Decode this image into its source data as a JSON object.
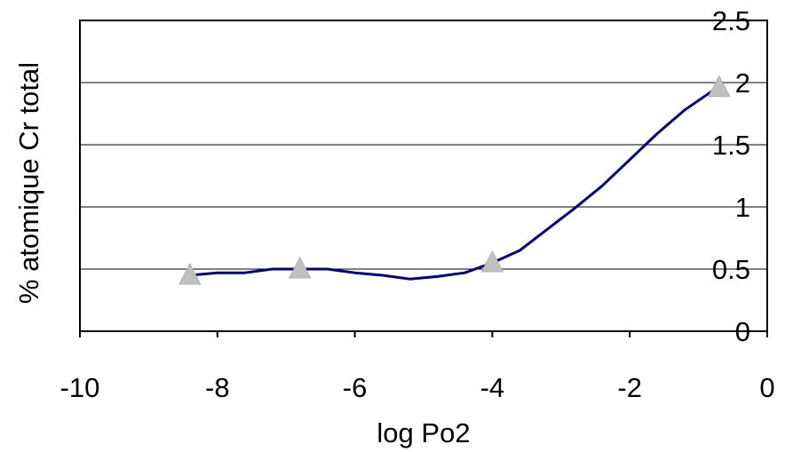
{
  "chart_data": {
    "type": "line",
    "title": "",
    "xlabel": "log Po2",
    "ylabel": "% atomique Cr total",
    "xlim": [
      -10,
      0
    ],
    "ylim": [
      0,
      2.5
    ],
    "x_ticks": [
      -10,
      -8,
      -6,
      -4,
      -2,
      0
    ],
    "x_tick_labels": [
      "-10",
      "-8",
      "-6",
      "-4",
      "-2",
      "0"
    ],
    "y_ticks": [
      0,
      0.5,
      1,
      1.5,
      2,
      2.5
    ],
    "y_tick_labels": [
      "0",
      "0.5",
      "1",
      "1.5",
      "2",
      "2.5"
    ],
    "grid": "horizontal",
    "legend": "none",
    "series": [
      {
        "kind": "line",
        "color": "#000080",
        "x": [
          -8.4,
          -8.0,
          -7.6,
          -7.2,
          -6.8,
          -6.4,
          -6.0,
          -5.6,
          -5.2,
          -4.8,
          -4.4,
          -4.0,
          -3.6,
          -3.2,
          -2.8,
          -2.4,
          -2.0,
          -1.6,
          -1.2,
          -0.7
        ],
        "y": [
          0.45,
          0.47,
          0.47,
          0.5,
          0.5,
          0.5,
          0.47,
          0.45,
          0.42,
          0.44,
          0.47,
          0.55,
          0.65,
          0.82,
          0.99,
          1.17,
          1.38,
          1.59,
          1.78,
          1.97
        ]
      },
      {
        "kind": "marker",
        "marker": "triangle",
        "color": "#c0c0c0",
        "x": [
          -8.4,
          -6.8,
          -4.0,
          -0.7
        ],
        "y": [
          0.45,
          0.5,
          0.55,
          1.96
        ]
      }
    ]
  }
}
